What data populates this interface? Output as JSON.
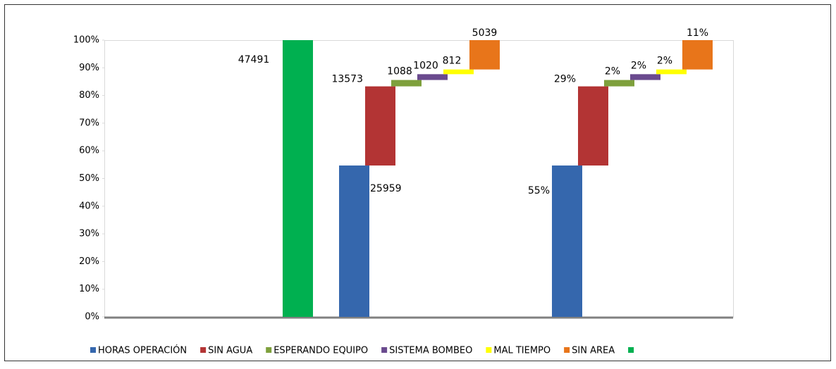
{
  "chart_data": {
    "type": "waterfall",
    "ylim": [
      0,
      100
    ],
    "yticks": [
      {
        "value": 0,
        "label": "0%"
      },
      {
        "value": 10,
        "label": "10%"
      },
      {
        "value": 20,
        "label": "20%"
      },
      {
        "value": 30,
        "label": "30%"
      },
      {
        "value": 40,
        "label": "40%"
      },
      {
        "value": 50,
        "label": "50%"
      },
      {
        "value": 60,
        "label": "60%"
      },
      {
        "value": 70,
        "label": "70%"
      },
      {
        "value": 80,
        "label": "80%"
      },
      {
        "value": 90,
        "label": "90%"
      },
      {
        "value": 100,
        "label": "100%"
      }
    ],
    "total": {
      "name": null,
      "color": "#00b050",
      "value": 100,
      "hours": 47491
    },
    "series": [
      {
        "name": "HORAS OPERACIÓN",
        "color": "#3567ad",
        "value": 54.7,
        "value_label": "55%",
        "hours": 25959
      },
      {
        "name": "SIN AGUA",
        "color": "#b33434",
        "value": 28.6,
        "value_label": "29%",
        "hours": 13573
      },
      {
        "name": "ESPERANDO EQUIPO",
        "color": "#7ea03c",
        "value": 2.3,
        "value_label": "2%",
        "hours": 1088
      },
      {
        "name": "SISTEMA BOMBEO",
        "color": "#6a4a8e",
        "value": 2.1,
        "value_label": "2%",
        "hours": 1020
      },
      {
        "name": "MAL TIEMPO",
        "color": "#ffff00",
        "value": 1.7,
        "value_label": "2%",
        "hours": 812
      },
      {
        "name": "SIN AREA",
        "color": "#e8751a",
        "value": 10.6,
        "value_label": "11%",
        "hours": 5039
      }
    ]
  }
}
